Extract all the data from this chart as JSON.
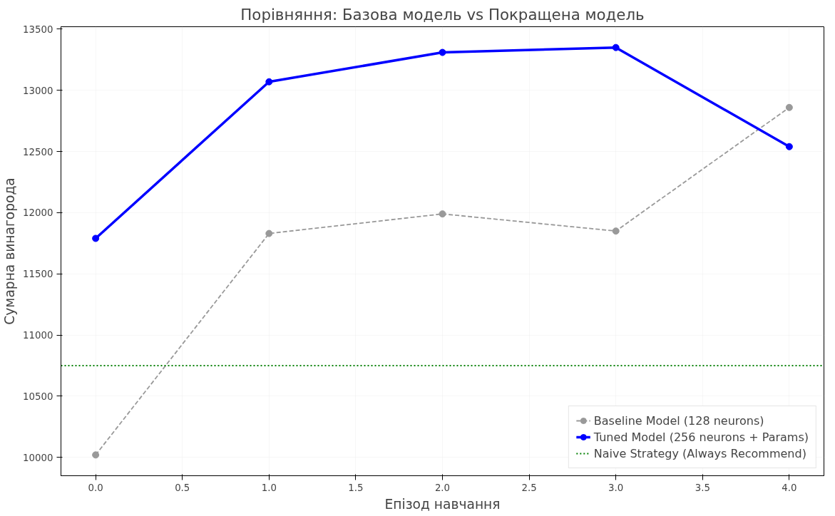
{
  "chart_data": {
    "type": "line",
    "title": "Порівняння: Базова модель vs Покращена модель",
    "xlabel": "Епізод навчання",
    "ylabel": "Сумарна винагорода",
    "x": [
      0,
      1,
      2,
      3,
      4
    ],
    "series": [
      {
        "name": "Baseline Model (128 neurons)",
        "color": "#999999",
        "values": [
          10020,
          11830,
          11990,
          11850,
          12860
        ],
        "line_style": "dashed",
        "marker": "circle"
      },
      {
        "name": "Tuned Model (256 neurons + Params)",
        "color": "#0000ff",
        "values": [
          11790,
          13070,
          13310,
          13350,
          12540
        ],
        "line_style": "solid",
        "marker": "circle"
      }
    ],
    "ref_lines": [
      {
        "axis": "y",
        "value": 10750,
        "label": "Naive Strategy (Always Recommend)",
        "color": "#008000",
        "line_style": "dotted"
      }
    ],
    "xlim": [
      -0.2,
      4.2
    ],
    "ylim": [
      9850,
      13520
    ],
    "xticks": [
      {
        "value": 0,
        "label": "0.0"
      },
      {
        "value": 0.5,
        "label": "0.5"
      },
      {
        "value": 1,
        "label": "1.0"
      },
      {
        "value": 1.5,
        "label": "1.5"
      },
      {
        "value": 2,
        "label": "2.0"
      },
      {
        "value": 2.5,
        "label": "2.5"
      },
      {
        "value": 3,
        "label": "3.0"
      },
      {
        "value": 3.5,
        "label": "3.5"
      },
      {
        "value": 4,
        "label": "4.0"
      }
    ],
    "yticks": [
      10000,
      10500,
      11000,
      11500,
      12000,
      12500,
      13000,
      13500
    ],
    "grid": true,
    "legend": "bottom right"
  }
}
